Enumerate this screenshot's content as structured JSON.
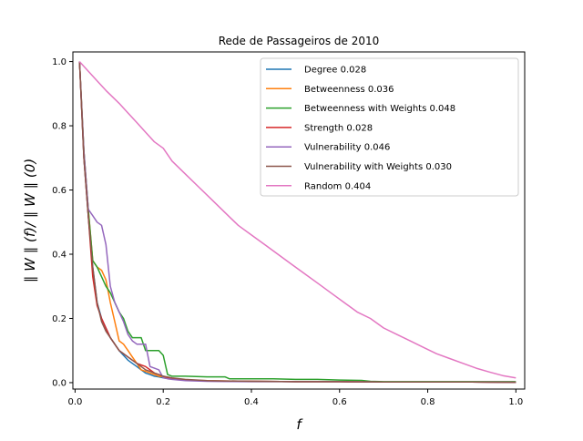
{
  "chart_data": {
    "type": "line",
    "title": "Rede de Passageiros de 2010",
    "xlabel": "f",
    "ylabel": "∥ W ∥ (f)/ ∥ W ∥ (0)",
    "xlim": [
      -0.005,
      1.02
    ],
    "ylim": [
      -0.02,
      1.03
    ],
    "xticks": [
      "0.0",
      "0.2",
      "0.4",
      "0.6",
      "0.8",
      "1.0"
    ],
    "yticks": [
      "0.0",
      "0.2",
      "0.4",
      "0.6",
      "0.8",
      "1.0"
    ],
    "grid": false,
    "legend_position": "top-right",
    "series": [
      {
        "name": "Degree 0.028",
        "color": "#1f77b4",
        "x": [
          0.01,
          0.02,
          0.03,
          0.04,
          0.05,
          0.06,
          0.07,
          0.08,
          0.09,
          0.1,
          0.11,
          0.12,
          0.13,
          0.14,
          0.15,
          0.16,
          0.17,
          0.18,
          0.19,
          0.2,
          0.22,
          0.25,
          0.3,
          0.4,
          0.5,
          0.6,
          0.7,
          0.8,
          0.9,
          1.0
        ],
        "y": [
          1.0,
          0.7,
          0.52,
          0.36,
          0.25,
          0.2,
          0.17,
          0.14,
          0.12,
          0.1,
          0.085,
          0.07,
          0.06,
          0.05,
          0.04,
          0.03,
          0.025,
          0.02,
          0.018,
          0.015,
          0.012,
          0.008,
          0.005,
          0.004,
          0.003,
          0.003,
          0.002,
          0.002,
          0.002,
          0.001
        ]
      },
      {
        "name": "Betweenness 0.036",
        "color": "#ff7f0e",
        "x": [
          0.01,
          0.02,
          0.03,
          0.04,
          0.05,
          0.06,
          0.07,
          0.08,
          0.09,
          0.1,
          0.11,
          0.12,
          0.13,
          0.14,
          0.15,
          0.16,
          0.17,
          0.18,
          0.19,
          0.2,
          0.22,
          0.25,
          0.3,
          0.4,
          0.5,
          0.6,
          0.7,
          0.8,
          0.9,
          1.0
        ],
        "y": [
          1.0,
          0.72,
          0.54,
          0.38,
          0.36,
          0.35,
          0.32,
          0.25,
          0.19,
          0.13,
          0.12,
          0.1,
          0.08,
          0.06,
          0.04,
          0.035,
          0.03,
          0.025,
          0.02,
          0.018,
          0.012,
          0.008,
          0.006,
          0.004,
          0.003,
          0.003,
          0.002,
          0.002,
          0.002,
          0.001
        ]
      },
      {
        "name": "Betweenness with Weights 0.048",
        "color": "#2ca02c",
        "x": [
          0.01,
          0.02,
          0.03,
          0.04,
          0.05,
          0.06,
          0.07,
          0.08,
          0.09,
          0.1,
          0.11,
          0.12,
          0.13,
          0.14,
          0.15,
          0.16,
          0.17,
          0.18,
          0.19,
          0.2,
          0.21,
          0.22,
          0.25,
          0.3,
          0.34,
          0.35,
          0.4,
          0.45,
          0.5,
          0.55,
          0.6,
          0.65,
          0.67,
          0.7,
          0.8,
          0.9,
          1.0
        ],
        "y": [
          1.0,
          0.72,
          0.54,
          0.38,
          0.36,
          0.33,
          0.3,
          0.28,
          0.25,
          0.22,
          0.2,
          0.16,
          0.14,
          0.14,
          0.14,
          0.1,
          0.1,
          0.1,
          0.1,
          0.085,
          0.025,
          0.02,
          0.02,
          0.018,
          0.018,
          0.012,
          0.012,
          0.012,
          0.01,
          0.01,
          0.008,
          0.007,
          0.004,
          0.003,
          0.003,
          0.003,
          0.003
        ]
      },
      {
        "name": "Strength 0.028",
        "color": "#d62728",
        "x": [
          0.01,
          0.02,
          0.03,
          0.04,
          0.05,
          0.06,
          0.07,
          0.08,
          0.09,
          0.1,
          0.11,
          0.12,
          0.13,
          0.14,
          0.15,
          0.16,
          0.17,
          0.18,
          0.19,
          0.2,
          0.22,
          0.25,
          0.3,
          0.4,
          0.5,
          0.6,
          0.7,
          0.8,
          0.9,
          1.0
        ],
        "y": [
          1.0,
          0.7,
          0.52,
          0.33,
          0.24,
          0.2,
          0.17,
          0.14,
          0.12,
          0.1,
          0.09,
          0.08,
          0.07,
          0.06,
          0.055,
          0.05,
          0.04,
          0.03,
          0.025,
          0.02,
          0.012,
          0.008,
          0.005,
          0.004,
          0.003,
          0.003,
          0.002,
          0.002,
          0.002,
          0.001
        ]
      },
      {
        "name": "Vulnerability 0.046",
        "color": "#9467bd",
        "x": [
          0.01,
          0.02,
          0.03,
          0.04,
          0.05,
          0.06,
          0.07,
          0.08,
          0.09,
          0.1,
          0.11,
          0.12,
          0.13,
          0.14,
          0.15,
          0.16,
          0.17,
          0.18,
          0.19,
          0.2,
          0.21,
          0.22,
          0.25,
          0.3,
          0.4,
          0.5,
          0.6,
          0.7,
          0.8,
          0.9,
          1.0
        ],
        "y": [
          1.0,
          0.72,
          0.54,
          0.52,
          0.5,
          0.49,
          0.43,
          0.3,
          0.25,
          0.22,
          0.19,
          0.15,
          0.13,
          0.12,
          0.12,
          0.12,
          0.05,
          0.045,
          0.04,
          0.015,
          0.012,
          0.01,
          0.006,
          0.004,
          0.003,
          0.003,
          0.003,
          0.002,
          0.002,
          0.002,
          0.001
        ]
      },
      {
        "name": "Vulnerability with Weights 0.030",
        "color": "#8c564b",
        "x": [
          0.01,
          0.02,
          0.03,
          0.04,
          0.05,
          0.06,
          0.07,
          0.08,
          0.09,
          0.1,
          0.11,
          0.12,
          0.13,
          0.14,
          0.15,
          0.16,
          0.17,
          0.18,
          0.19,
          0.2,
          0.22,
          0.25,
          0.3,
          0.4,
          0.5,
          0.6,
          0.7,
          0.8,
          0.9,
          1.0
        ],
        "y": [
          1.0,
          0.7,
          0.52,
          0.36,
          0.25,
          0.19,
          0.16,
          0.14,
          0.12,
          0.1,
          0.09,
          0.08,
          0.07,
          0.06,
          0.05,
          0.04,
          0.035,
          0.03,
          0.025,
          0.02,
          0.015,
          0.01,
          0.006,
          0.004,
          0.003,
          0.003,
          0.002,
          0.002,
          0.002,
          0.001
        ]
      },
      {
        "name": "Random 0.404",
        "color": "#e377c2",
        "x": [
          0.01,
          0.03,
          0.05,
          0.07,
          0.1,
          0.12,
          0.14,
          0.16,
          0.18,
          0.2,
          0.22,
          0.25,
          0.28,
          0.31,
          0.34,
          0.37,
          0.4,
          0.43,
          0.46,
          0.49,
          0.52,
          0.55,
          0.58,
          0.61,
          0.64,
          0.67,
          0.7,
          0.73,
          0.76,
          0.79,
          0.82,
          0.85,
          0.88,
          0.91,
          0.94,
          0.97,
          1.0
        ],
        "y": [
          1.0,
          0.97,
          0.94,
          0.91,
          0.87,
          0.84,
          0.81,
          0.78,
          0.75,
          0.73,
          0.69,
          0.65,
          0.61,
          0.57,
          0.53,
          0.49,
          0.46,
          0.43,
          0.4,
          0.37,
          0.34,
          0.31,
          0.28,
          0.25,
          0.22,
          0.2,
          0.17,
          0.15,
          0.13,
          0.11,
          0.09,
          0.075,
          0.06,
          0.045,
          0.033,
          0.022,
          0.015
        ]
      }
    ]
  }
}
